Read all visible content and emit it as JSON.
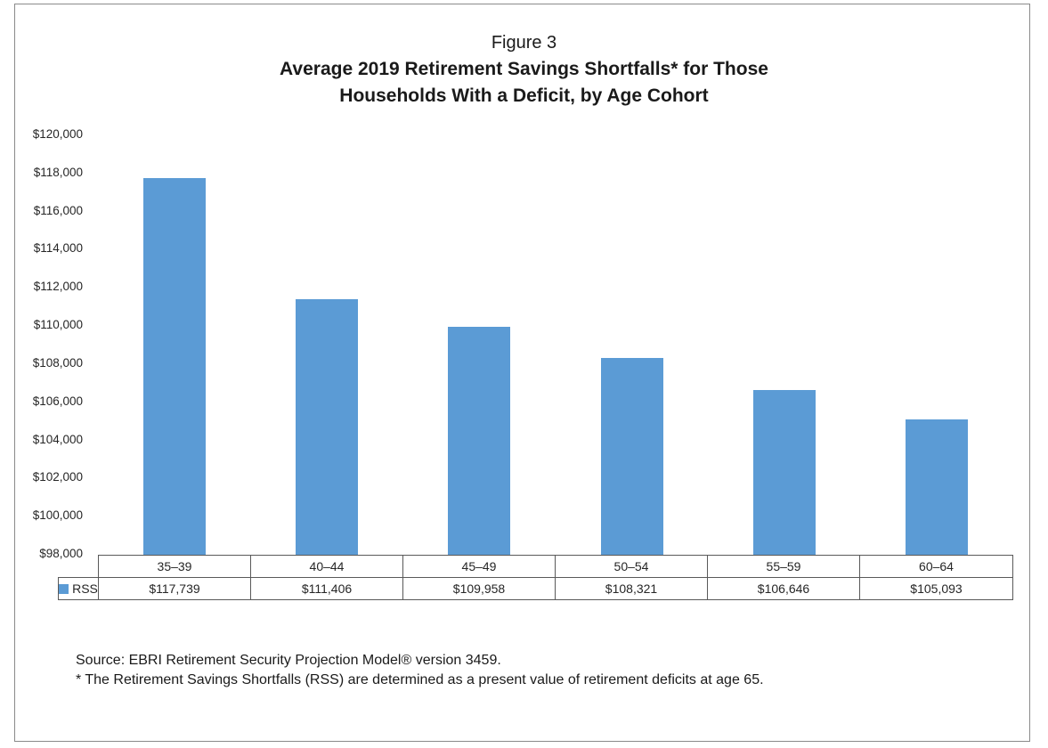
{
  "figure": {
    "label": "Figure 3",
    "title_line1": "Average 2019 Retirement Savings Shortfalls* for Those",
    "title_line2": "Households With a Deficit, by Age Cohort"
  },
  "chart_data": {
    "type": "bar",
    "title": "Figure 3",
    "subtitle": "Average 2019 Retirement Savings Shortfalls* for Those Households With a Deficit, by Age Cohort",
    "categories": [
      "35–39",
      "40–44",
      "45–49",
      "50–54",
      "55–59",
      "60–64"
    ],
    "series": [
      {
        "name": "RSS",
        "values": [
          117739,
          111406,
          109958,
          108321,
          106646,
          105093
        ]
      }
    ],
    "value_labels": [
      "$117,739",
      "$111,406",
      "$109,958",
      "$108,321",
      "$106,646",
      "$105,093"
    ],
    "xlabel": "",
    "ylabel": "",
    "ylim": [
      98000,
      120000
    ],
    "ytick_step": 2000,
    "ytick_labels": [
      "$120,000",
      "$118,000",
      "$116,000",
      "$114,000",
      "$112,000",
      "$110,000",
      "$108,000",
      "$106,000",
      "$104,000",
      "$102,000",
      "$100,000",
      "$98,000"
    ],
    "grid": false,
    "legend_position": "table-left",
    "bar_color": "#5B9BD5"
  },
  "legend": {
    "rss_label": "RSS"
  },
  "footnotes": {
    "source": "Source: EBRI Retirement Security Projection Model® version 3459.",
    "asterisk": "* The Retirement Savings Shortfalls (RSS) are determined as a present value of retirement deficits at age 65."
  }
}
